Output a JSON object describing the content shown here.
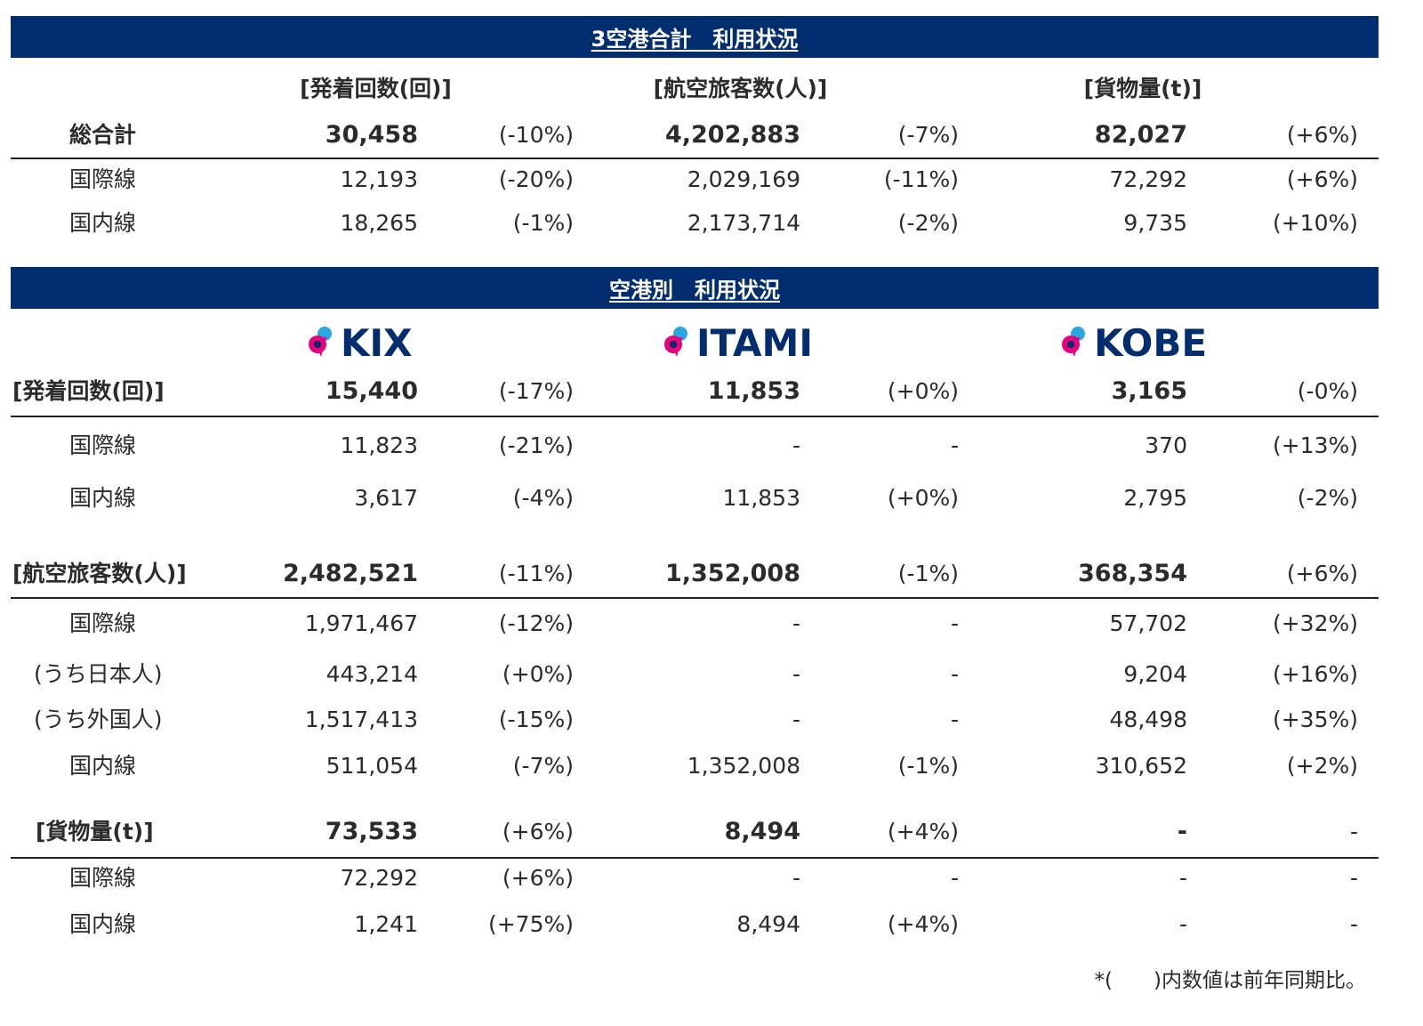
{
  "summary": {
    "banner": "3空港合計　利用状況",
    "headers": [
      "[発着回数(回)]",
      "[航空旅客数(人)]",
      "[貨物量(t)]"
    ],
    "rows": [
      {
        "label": "総合計",
        "v1": "30,458",
        "p1": "(-10%)",
        "v2": "4,202,883",
        "p2": "(-7%)",
        "v3": "82,027",
        "p3": "(+6%)"
      },
      {
        "label": "国際線",
        "v1": "12,193",
        "p1": "(-20%)",
        "v2": "2,029,169",
        "p2": "(-11%)",
        "v3": "72,292",
        "p3": "(+6%)"
      },
      {
        "label": "国内線",
        "v1": "18,265",
        "p1": "(-1%)",
        "v2": "2,173,714",
        "p2": "(-2%)",
        "v3": "9,735",
        "p3": "(+10%)"
      }
    ]
  },
  "airports": {
    "banner": "空港別　利用状況",
    "logos": [
      "KIX",
      "ITAMI",
      "KOBE"
    ],
    "movements": {
      "head": {
        "label": "[発着回数(回)]",
        "v1": "15,440",
        "p1": "(-17%)",
        "v2": "11,853",
        "p2": "(+0%)",
        "v3": "3,165",
        "p3": "(-0%)"
      },
      "rows": [
        {
          "label": "国際線",
          "v1": "11,823",
          "p1": "(-21%)",
          "v2": "-",
          "p2": "-",
          "v3": "370",
          "p3": "(+13%)"
        },
        {
          "label": "国内線",
          "v1": "3,617",
          "p1": "(-4%)",
          "v2": "11,853",
          "p2": "(+0%)",
          "v3": "2,795",
          "p3": "(-2%)"
        }
      ]
    },
    "passengers": {
      "head": {
        "label": "[航空旅客数(人)]",
        "v1": "2,482,521",
        "p1": "(-11%)",
        "v2": "1,352,008",
        "p2": "(-1%)",
        "v3": "368,354",
        "p3": "(+6%)"
      },
      "rows": [
        {
          "label": "国際線",
          "v1": "1,971,467",
          "p1": "(-12%)",
          "v2": "-",
          "p2": "-",
          "v3": "57,702",
          "p3": "(+32%)"
        },
        {
          "label": "(うち日本人)",
          "v1": "443,214",
          "p1": "(+0%)",
          "v2": "-",
          "p2": "-",
          "v3": "9,204",
          "p3": "(+16%)"
        },
        {
          "label": "(うち外国人)",
          "v1": "1,517,413",
          "p1": "(-15%)",
          "v2": "-",
          "p2": "-",
          "v3": "48,498",
          "p3": "(+35%)"
        },
        {
          "label": "国内線",
          "v1": "511,054",
          "p1": "(-7%)",
          "v2": "1,352,008",
          "p2": "(-1%)",
          "v3": "310,652",
          "p3": "(+2%)"
        }
      ]
    },
    "cargo": {
      "head": {
        "label": "[貨物量(t)]",
        "v1": "73,533",
        "p1": "(+6%)",
        "v2": "8,494",
        "p2": "(+4%)",
        "v3": "-",
        "p3": "-"
      },
      "rows": [
        {
          "label": "国際線",
          "v1": "72,292",
          "p1": "(+6%)",
          "v2": "-",
          "p2": "-",
          "v3": "-",
          "p3": "-"
        },
        {
          "label": "国内線",
          "v1": "1,241",
          "p1": "(+75%)",
          "v2": "8,494",
          "p2": "(+4%)",
          "v3": "-",
          "p3": "-"
        }
      ]
    }
  },
  "note": "*(　　)内数値は前年同期比。",
  "colors": {
    "banner": "#002d6e",
    "logo_pink": "#e6007e",
    "logo_blue": "#2aa7e0"
  }
}
